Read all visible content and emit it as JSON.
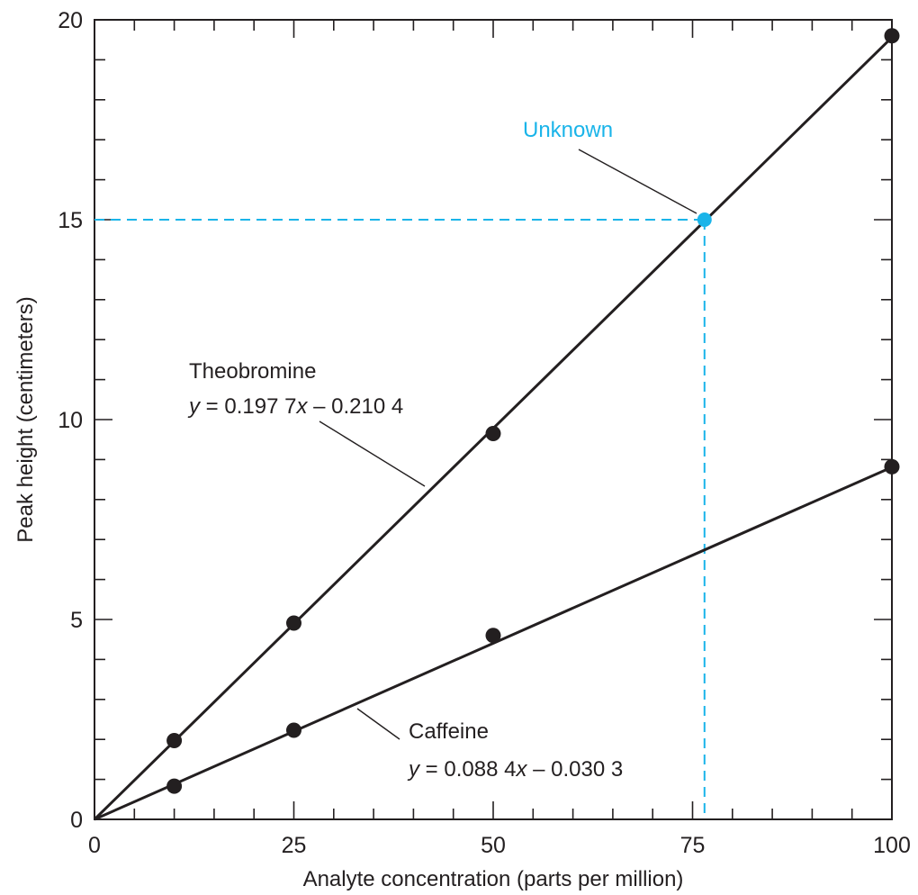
{
  "chart_data": {
    "type": "scatter",
    "xlabel": "Analyte concentration (parts per million)",
    "ylabel": "Peak height (centimeters)",
    "xlim": [
      0,
      100
    ],
    "ylim": [
      0,
      20
    ],
    "x_ticks": [
      "0",
      "25",
      "50",
      "75",
      "100"
    ],
    "y_ticks": [
      "0",
      "5",
      "10",
      "15",
      "20"
    ],
    "grid": false,
    "series": [
      {
        "name": "Theobromine",
        "equation": {
          "var": "y",
          "lhs_rest": " = 0.197 7",
          "x_var": "x",
          "tail": " – 0.210 4"
        },
        "slope": 0.1977,
        "intercept": -0.2104,
        "fit_range": [
          0,
          100
        ],
        "points": [
          {
            "x": 10,
            "y": 1.97
          },
          {
            "x": 25,
            "y": 4.91
          },
          {
            "x": 50,
            "y": 9.65
          },
          {
            "x": 100,
            "y": 19.6
          }
        ]
      },
      {
        "name": "Caffeine",
        "equation": {
          "var": "y",
          "lhs_rest": " = 0.088 4",
          "x_var": "x",
          "tail": " – 0.030 3"
        },
        "slope": 0.0884,
        "intercept": -0.0303,
        "fit_range": [
          0,
          100
        ],
        "points": [
          {
            "x": 10,
            "y": 0.83
          },
          {
            "x": 25,
            "y": 2.23
          },
          {
            "x": 50,
            "y": 4.6
          },
          {
            "x": 100,
            "y": 8.82
          }
        ]
      }
    ],
    "annotations": [
      {
        "label": "Unknown",
        "x": 76.5,
        "y": 15.0,
        "color": "#1ab4e9"
      }
    ],
    "colors": {
      "ink": "#231f20",
      "unknown": "#1ab4e9"
    }
  }
}
